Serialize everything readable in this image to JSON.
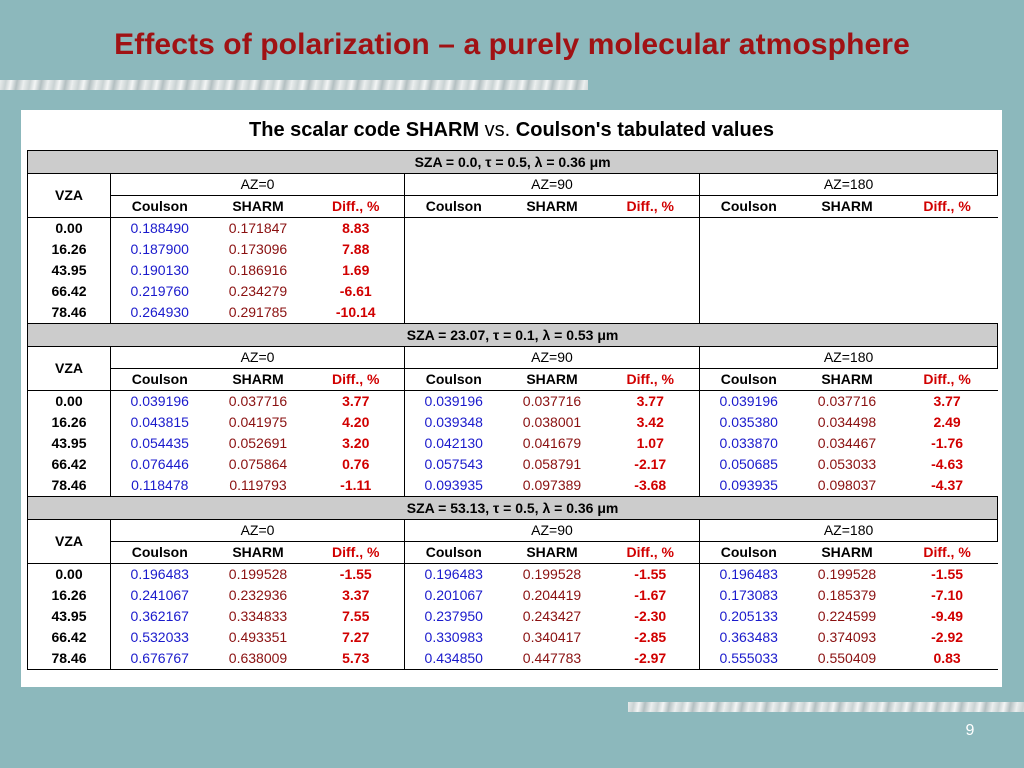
{
  "slide": {
    "title": "Effects of polarization – a purely molecular atmosphere",
    "subtitle_part1": "The scalar code SHARM",
    "subtitle_vs": "vs.",
    "subtitle_part2": "Coulson's tabulated values",
    "page_number": "9"
  },
  "colors": {
    "title": "#a01214",
    "background": "#8cb8bc",
    "coulson": "#1a1acc",
    "sharm": "#8a1010",
    "diff": "#d10000"
  },
  "table": {
    "vza_label": "VZA",
    "az_headers": [
      "AZ=0",
      "AZ=90",
      "AZ=180"
    ],
    "col_headers": [
      "Coulson",
      "SHARM",
      "Diff., %"
    ],
    "sections": [
      {
        "header": "SZA = 0.0, τ = 0.5, λ = 0.36 μm",
        "rows": [
          {
            "vza": "0.00",
            "vals": [
              [
                "0.188490",
                "0.171847",
                "8.83"
              ],
              [
                "",
                "",
                ""
              ],
              [
                "",
                "",
                ""
              ]
            ]
          },
          {
            "vza": "16.26",
            "vals": [
              [
                "0.187900",
                "0.173096",
                "7.88"
              ],
              [
                "",
                "",
                ""
              ],
              [
                "",
                "",
                ""
              ]
            ]
          },
          {
            "vza": "43.95",
            "vals": [
              [
                "0.190130",
                "0.186916",
                "1.69"
              ],
              [
                "",
                "",
                ""
              ],
              [
                "",
                "",
                ""
              ]
            ]
          },
          {
            "vza": "66.42",
            "vals": [
              [
                "0.219760",
                "0.234279",
                "-6.61"
              ],
              [
                "",
                "",
                ""
              ],
              [
                "",
                "",
                ""
              ]
            ]
          },
          {
            "vza": "78.46",
            "vals": [
              [
                "0.264930",
                "0.291785",
                "-10.14"
              ],
              [
                "",
                "",
                ""
              ],
              [
                "",
                "",
                ""
              ]
            ]
          }
        ]
      },
      {
        "header": "SZA = 23.07, τ = 0.1, λ = 0.53 μm",
        "rows": [
          {
            "vza": "0.00",
            "vals": [
              [
                "0.039196",
                "0.037716",
                "3.77"
              ],
              [
                "0.039196",
                "0.037716",
                "3.77"
              ],
              [
                "0.039196",
                "0.037716",
                "3.77"
              ]
            ]
          },
          {
            "vza": "16.26",
            "vals": [
              [
                "0.043815",
                "0.041975",
                "4.20"
              ],
              [
                "0.039348",
                "0.038001",
                "3.42"
              ],
              [
                "0.035380",
                "0.034498",
                "2.49"
              ]
            ]
          },
          {
            "vza": "43.95",
            "vals": [
              [
                "0.054435",
                "0.052691",
                "3.20"
              ],
              [
                "0.042130",
                "0.041679",
                "1.07"
              ],
              [
                "0.033870",
                "0.034467",
                "-1.76"
              ]
            ]
          },
          {
            "vza": "66.42",
            "vals": [
              [
                "0.076446",
                "0.075864",
                "0.76"
              ],
              [
                "0.057543",
                "0.058791",
                "-2.17"
              ],
              [
                "0.050685",
                "0.053033",
                "-4.63"
              ]
            ]
          },
          {
            "vza": "78.46",
            "vals": [
              [
                "0.118478",
                "0.119793",
                "-1.11"
              ],
              [
                "0.093935",
                "0.097389",
                "-3.68"
              ],
              [
                "0.093935",
                "0.098037",
                "-4.37"
              ]
            ]
          }
        ]
      },
      {
        "header": "SZA = 53.13, τ = 0.5, λ = 0.36 μm",
        "rows": [
          {
            "vza": "0.00",
            "vals": [
              [
                "0.196483",
                "0.199528",
                "-1.55"
              ],
              [
                "0.196483",
                "0.199528",
                "-1.55"
              ],
              [
                "0.196483",
                "0.199528",
                "-1.55"
              ]
            ]
          },
          {
            "vza": "16.26",
            "vals": [
              [
                "0.241067",
                "0.232936",
                "3.37"
              ],
              [
                "0.201067",
                "0.204419",
                "-1.67"
              ],
              [
                "0.173083",
                "0.185379",
                "-7.10"
              ]
            ]
          },
          {
            "vza": "43.95",
            "vals": [
              [
                "0.362167",
                "0.334833",
                "7.55"
              ],
              [
                "0.237950",
                "0.243427",
                "-2.30"
              ],
              [
                "0.205133",
                "0.224599",
                "-9.49"
              ]
            ]
          },
          {
            "vza": "66.42",
            "vals": [
              [
                "0.532033",
                "0.493351",
                "7.27"
              ],
              [
                "0.330983",
                "0.340417",
                "-2.85"
              ],
              [
                "0.363483",
                "0.374093",
                "-2.92"
              ]
            ]
          },
          {
            "vza": "78.46",
            "vals": [
              [
                "0.676767",
                "0.638009",
                "5.73"
              ],
              [
                "0.434850",
                "0.447783",
                "-2.97"
              ],
              [
                "0.555033",
                "0.550409",
                "0.83"
              ]
            ]
          }
        ]
      }
    ]
  }
}
